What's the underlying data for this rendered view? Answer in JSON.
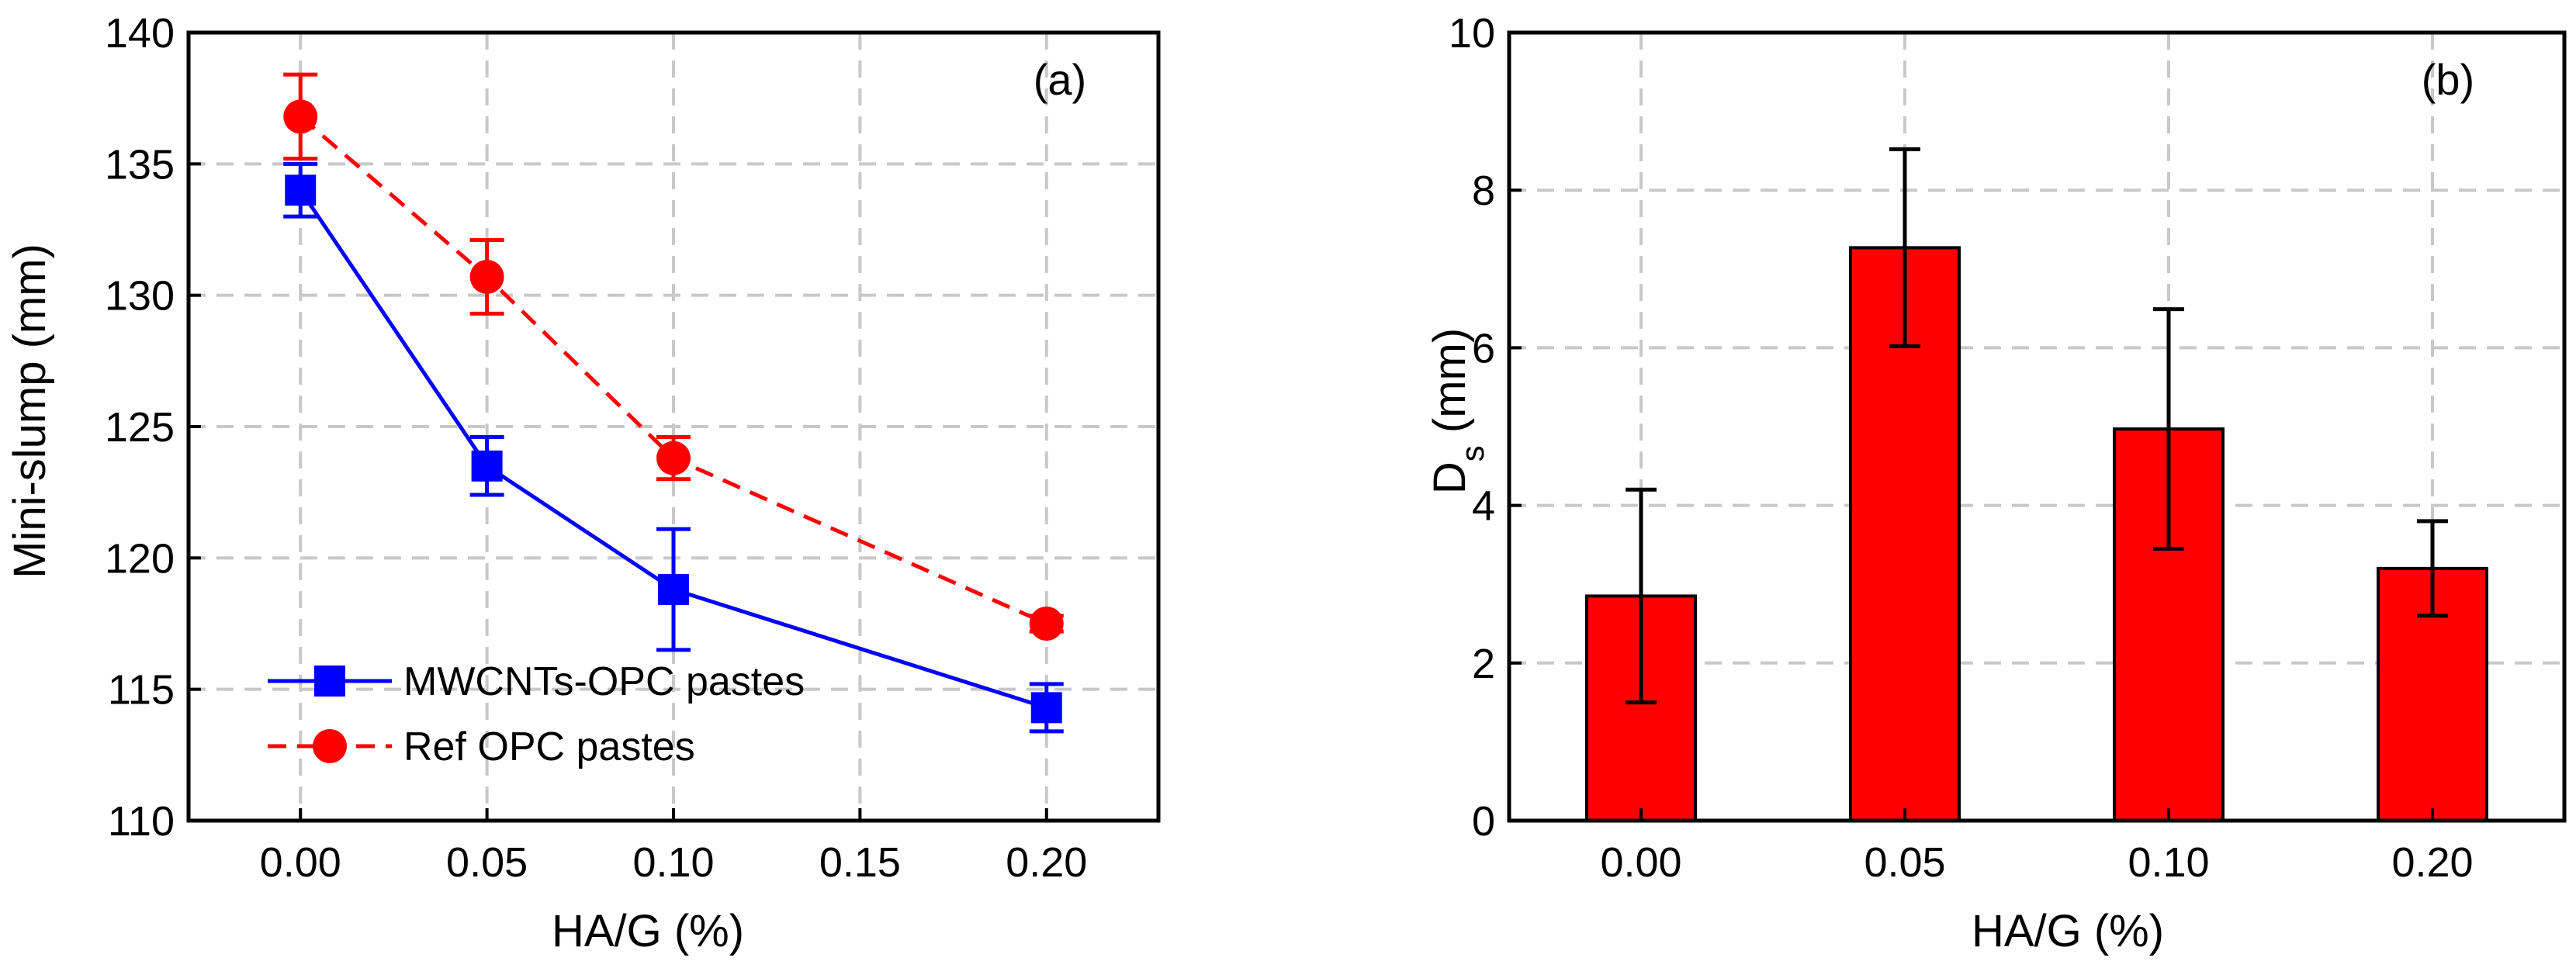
{
  "chart_data": [
    {
      "panel": "(a)",
      "type": "line",
      "xlabel": "HA/G (%)",
      "ylabel": "Mini-slump (mm)",
      "xlim": [
        -0.03,
        0.23
      ],
      "ylim": [
        110,
        140
      ],
      "xticks": [
        "0.00",
        "0.05",
        "0.10",
        "0.15",
        "0.20"
      ],
      "yticks": [
        "110",
        "115",
        "120",
        "125",
        "130",
        "135",
        "140"
      ],
      "grid": true,
      "legend_position": "bottom-left",
      "series": [
        {
          "name": "MWCNTs-OPC pastes",
          "color": "#0000ff",
          "marker": "square",
          "line": "solid",
          "x": [
            0.0,
            0.05,
            0.1,
            0.2
          ],
          "y": [
            134.0,
            123.5,
            118.8,
            114.3
          ],
          "err": [
            1.0,
            1.1,
            2.3,
            0.9
          ]
        },
        {
          "name": "Ref OPC pastes",
          "color": "#ff0000",
          "marker": "circle",
          "line": "dashed",
          "x": [
            0.0,
            0.05,
            0.1,
            0.2
          ],
          "y": [
            136.8,
            130.7,
            123.8,
            117.5
          ],
          "err": [
            1.6,
            1.4,
            0.8,
            0.3
          ]
        }
      ]
    },
    {
      "panel": "(b)",
      "type": "bar",
      "xlabel": "HA/G (%)",
      "ylabel_main": "D",
      "ylabel_sub": "s",
      "ylabel_rest": " (mm)",
      "categories": [
        "0.00",
        "0.05",
        "0.10",
        "0.20"
      ],
      "values": [
        2.85,
        7.27,
        4.97,
        3.2
      ],
      "err": [
        1.35,
        1.25,
        1.52,
        0.6
      ],
      "ylim": [
        0,
        10
      ],
      "yticks": [
        "0",
        "2",
        "4",
        "6",
        "8",
        "10"
      ],
      "bar_color": "#ff0000",
      "grid": true
    }
  ]
}
